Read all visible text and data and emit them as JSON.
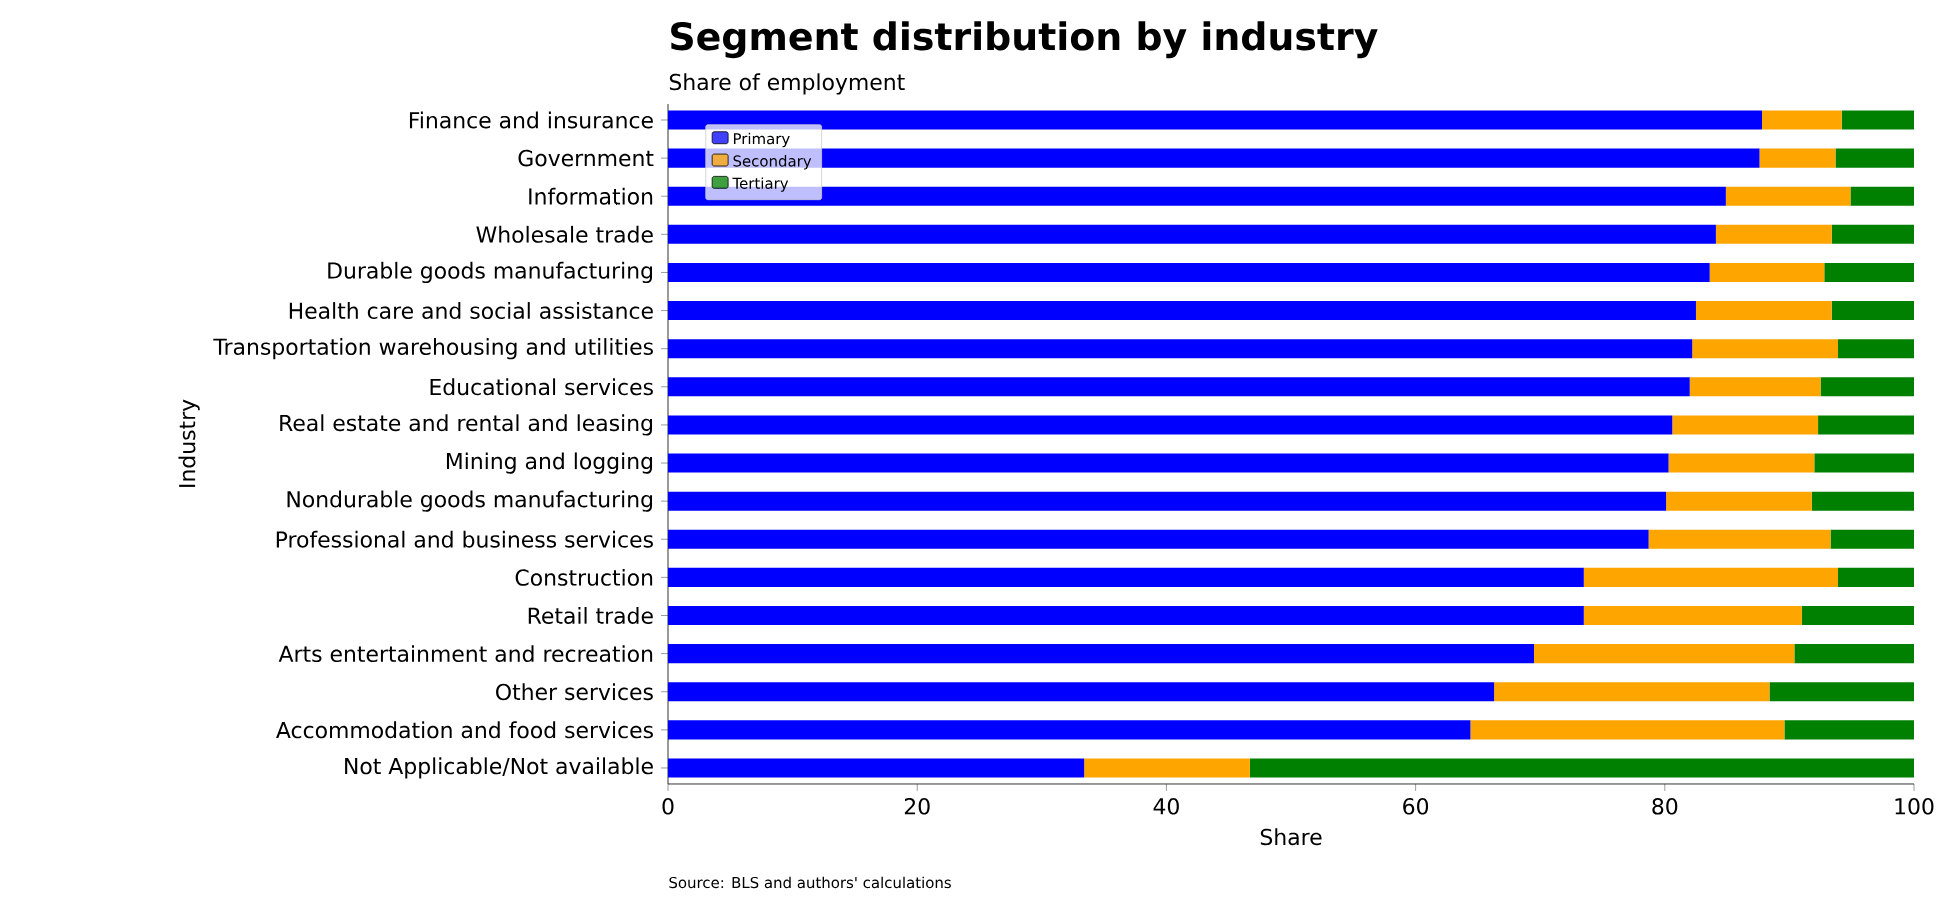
{
  "chart_data": {
    "type": "bar",
    "orientation": "horizontal",
    "stacked": true,
    "title": "Segment distribution by industry",
    "subtitle": "Share of employment",
    "xlabel": "Share",
    "ylabel": "Industry",
    "categories": [
      "Finance and insurance",
      "Government",
      "Information",
      "Wholesale trade",
      "Durable goods manufacturing",
      "Health care and social assistance",
      "Transportation warehousing and utilities",
      "Educational services",
      "Real estate and rental and leasing",
      "Mining and logging",
      "Nondurable goods manufacturing",
      "Professional and business services",
      "Construction",
      "Retail trade",
      "Arts entertainment and recreation",
      "Other services",
      "Accommodation and food services",
      "Not Applicable/Not available"
    ],
    "series": [
      {
        "name": "Primary",
        "color": "#0000ff",
        "values": [
          87.8,
          87.6,
          84.9,
          84.1,
          83.6,
          82.5,
          82.2,
          82.0,
          80.6,
          80.3,
          80.1,
          78.7,
          73.5,
          73.5,
          69.5,
          66.3,
          64.4,
          33.4
        ]
      },
      {
        "name": "Secondary",
        "color": "#ffa500",
        "values": [
          6.4,
          6.1,
          10.0,
          9.3,
          9.2,
          10.9,
          11.7,
          10.5,
          11.7,
          11.7,
          11.7,
          14.6,
          20.4,
          17.5,
          20.9,
          22.1,
          25.2,
          13.3
        ]
      },
      {
        "name": "Tertiary",
        "color": "#008000",
        "values": [
          5.8,
          6.3,
          5.1,
          6.6,
          7.2,
          6.6,
          6.1,
          7.5,
          7.7,
          8.0,
          8.2,
          6.7,
          6.1,
          9.0,
          9.6,
          11.6,
          10.4,
          53.3
        ]
      }
    ],
    "xlim": [
      0,
      100
    ],
    "xticks": [
      0,
      20,
      40,
      60,
      80,
      100
    ],
    "legend": "top left",
    "annotations": [
      "Source: BLS and authors' calculations"
    ]
  }
}
